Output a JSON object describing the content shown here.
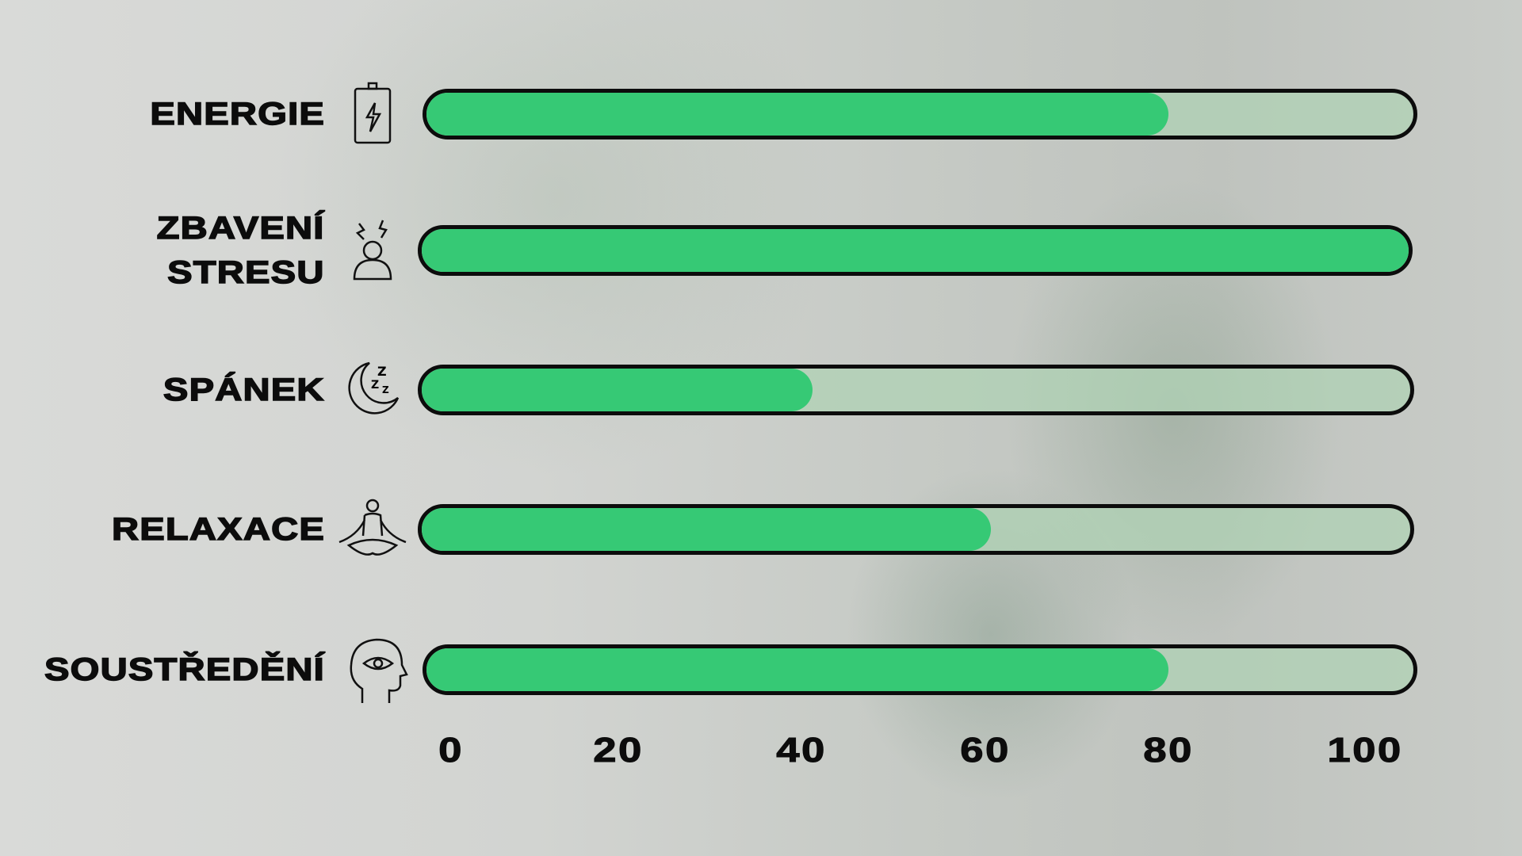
{
  "chart_data": {
    "type": "bar",
    "orientation": "horizontal",
    "categories": [
      "ENERGIE",
      "ZBAVENÍ STRESU",
      "SPÁNEK",
      "RELAXACE",
      "SOUSTŘEDĚNÍ"
    ],
    "category_lines": [
      [
        "ENERGIE"
      ],
      [
        "ZBAVENÍ",
        "STRESU"
      ],
      [
        "SPÁNEK"
      ],
      [
        "RELAXACE"
      ],
      [
        "SOUSTŘEDĚNÍ"
      ]
    ],
    "icons": [
      "battery-icon",
      "stressed-person-icon",
      "moon-sleep-icon",
      "meditation-icon",
      "head-eye-focus-icon"
    ],
    "values": [
      80,
      100,
      40,
      60,
      80
    ],
    "xlim": [
      0,
      100
    ],
    "ticks": [
      "0",
      "20",
      "40",
      "60",
      "80",
      "100"
    ],
    "colors": {
      "fill": "#36c975",
      "track": "#b4d2b9",
      "outline": "#0c0c0c"
    },
    "grid": false
  }
}
